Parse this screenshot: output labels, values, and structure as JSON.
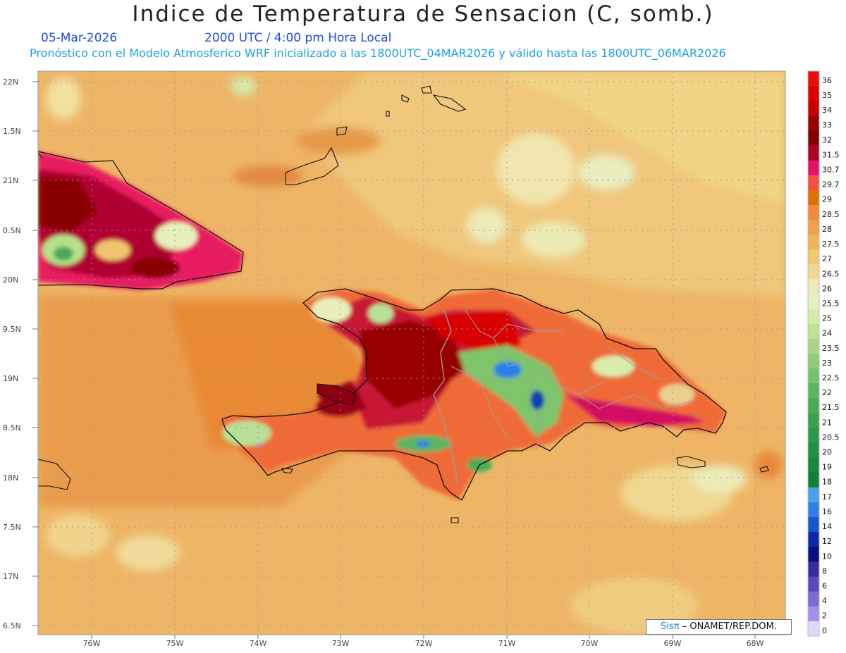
{
  "header": {
    "title": "Indice de Temperatura de Sensacion (C, somb.)",
    "date": "05-Mar-2026",
    "time": "2000 UTC / 4:00 pm Hora Local",
    "model": "Pronóstico con el Modelo Atmosferico WRF inicializado a las 1800UTC_04MAR2026 y válido hasta las  1800UTC_06MAR2026"
  },
  "map": {
    "lat_labels": [
      "22N",
      "1.5N",
      "21N",
      "0.5N",
      "20N",
      "9.5N",
      "19N",
      "8.5N",
      "18N",
      "7.5N",
      "17N",
      "6.5N"
    ],
    "lon_labels": [
      "76W",
      "75W",
      "74W",
      "73W",
      "72W",
      "71W",
      "70W",
      "69W",
      "68W"
    ],
    "background_color": "#eeb566"
  },
  "colorbar": {
    "labels": [
      "36",
      "35",
      "34",
      "33",
      "32",
      "31.5",
      "30.7",
      "29.7",
      "29",
      "28.5",
      "28",
      "27.5",
      "27",
      "26.5",
      "26",
      "25.5",
      "25",
      "24",
      "23.5",
      "23",
      "22.5",
      "22",
      "21.5",
      "21",
      "20.5",
      "20",
      "19",
      "18",
      "17",
      "16",
      "14",
      "12",
      "10",
      "8",
      "6",
      "4",
      "2",
      "0"
    ],
    "colors": [
      "#f00a0a",
      "#dd0000",
      "#c40000",
      "#9c0000",
      "#800000",
      "#b0002a",
      "#e8106a",
      "#f45040",
      "#e07000",
      "#ee8a3a",
      "#eea04a",
      "#f0b55a",
      "#f2c870",
      "#f2d890",
      "#eee8bc",
      "#e6f0c0",
      "#d6eca8",
      "#c0e296",
      "#a8d686",
      "#8ecc78",
      "#76c26c",
      "#5cb660",
      "#48ac56",
      "#38a24e",
      "#2c9848",
      "#209042",
      "#18883c",
      "#108036",
      "#4aa0f0",
      "#2c80e8",
      "#1458d0",
      "#0c28a8",
      "#0a1080",
      "#3a2aa0",
      "#5a48c0",
      "#7a6ad8",
      "#a090ec",
      "#dcdaf8"
    ]
  },
  "credit": {
    "brand": "Sisπ",
    "text": "– ONAMET/REP.DOM."
  }
}
